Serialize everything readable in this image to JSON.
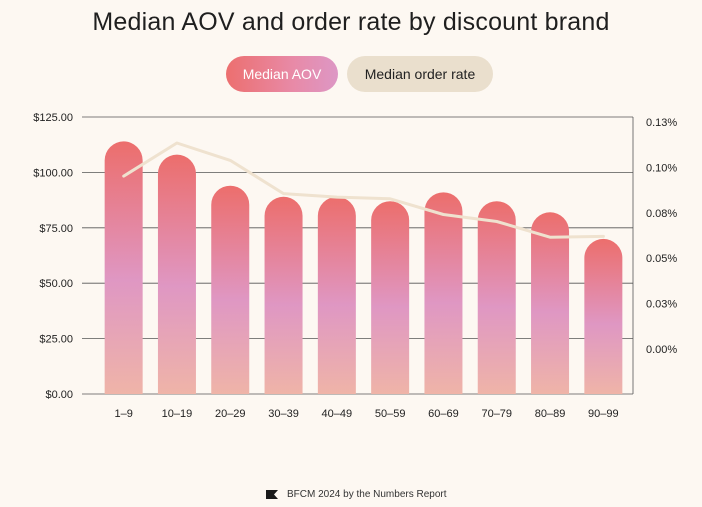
{
  "title": "Median AOV and order rate by discount brand",
  "legend": {
    "aov_label": "Median AOV",
    "rate_label": "Median order rate"
  },
  "footer": {
    "text": "BFCM 2024 by the Numbers Report"
  },
  "colors": {
    "bar_top": "#ec6e6c",
    "bar_mid": "#df97c3",
    "bar_bottom": "#efb4a8",
    "line": "#efe2cf",
    "grid": "#555555"
  },
  "chart_data": {
    "type": "bar",
    "categories": [
      "1–9",
      "10–19",
      "20–29",
      "30–39",
      "40–49",
      "50–59",
      "60–69",
      "70–79",
      "80–89",
      "90–99"
    ],
    "series": [
      {
        "name": "Median AOV",
        "type": "bar",
        "axis": "left",
        "values": [
          114,
          108,
          94,
          89,
          89,
          87,
          91,
          87,
          82,
          70
        ]
      },
      {
        "name": "Median order rate",
        "type": "line",
        "axis": "right",
        "values": [
          0.099,
          0.118,
          0.108,
          0.089,
          0.087,
          0.086,
          0.077,
          0.073,
          0.064,
          0.0645
        ]
      }
    ],
    "y_left": {
      "ticks": [
        "$125.00",
        "$100.00",
        "$75.00",
        "$50.00",
        "$25.00",
        "$0.00"
      ],
      "ylim": [
        0,
        125
      ]
    },
    "y_right": {
      "ticks": [
        "0.13%",
        "0.10%",
        "0.08%",
        "0.05%",
        "0.03%",
        "0.00%"
      ]
    },
    "grid": true,
    "legend_position": "top"
  }
}
